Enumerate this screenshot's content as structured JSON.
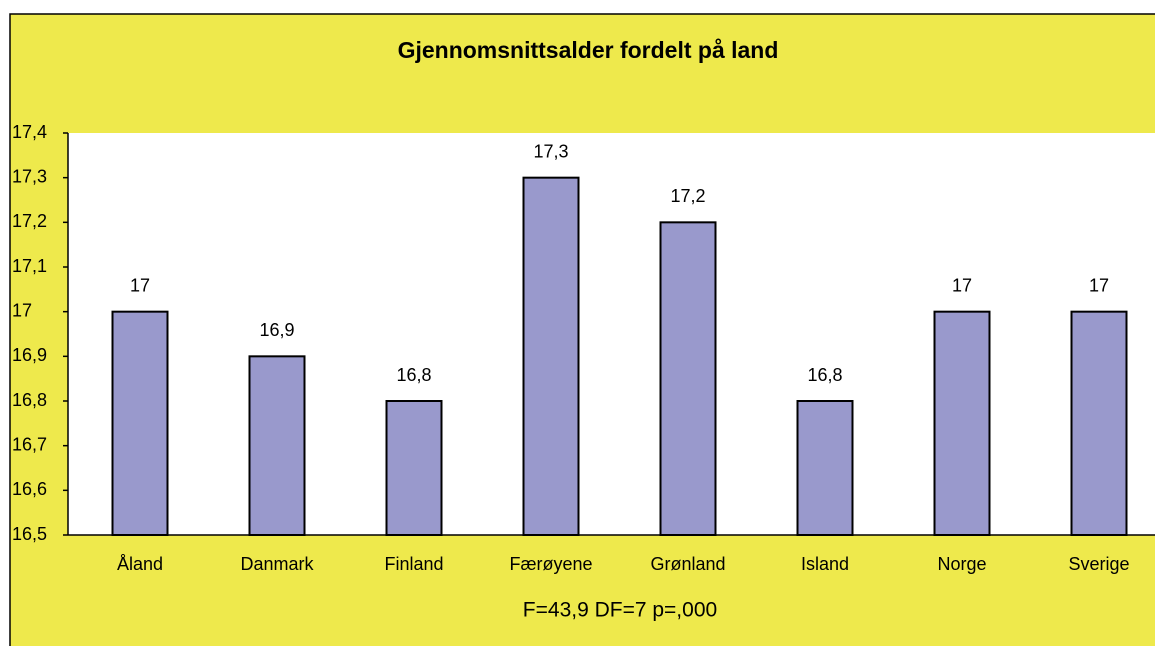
{
  "chart_data": {
    "type": "bar",
    "title": "Gjennomsnittsalder fordelt på land",
    "categories": [
      "Åland",
      "Danmark",
      "Finland",
      "Færøyene",
      "Grønland",
      "Island",
      "Norge",
      "Sverige"
    ],
    "values": [
      17,
      16.9,
      16.8,
      17.3,
      17.2,
      16.8,
      17,
      17
    ],
    "value_labels": [
      "17",
      "16,9",
      "16,8",
      "17,3",
      "17,2",
      "16,8",
      "17",
      "17"
    ],
    "color": "#9999cc",
    "ylim": [
      16.5,
      17.4
    ],
    "yticks": [
      {
        "value": 16.5,
        "label": "16,5"
      },
      {
        "value": 16.6,
        "label": "16,6"
      },
      {
        "value": 16.7,
        "label": "16,7"
      },
      {
        "value": 16.8,
        "label": "16,8"
      },
      {
        "value": 16.9,
        "label": "16,9"
      },
      17,
      {
        "value": 17.1,
        "label": "17,1"
      },
      {
        "value": 17.2,
        "label": "17,2"
      },
      {
        "value": 17.3,
        "label": "17,3"
      },
      {
        "value": 17.4,
        "label": "17,4"
      }
    ],
    "grid": false,
    "annotation": "F=43,9 DF=7 p=,000"
  }
}
